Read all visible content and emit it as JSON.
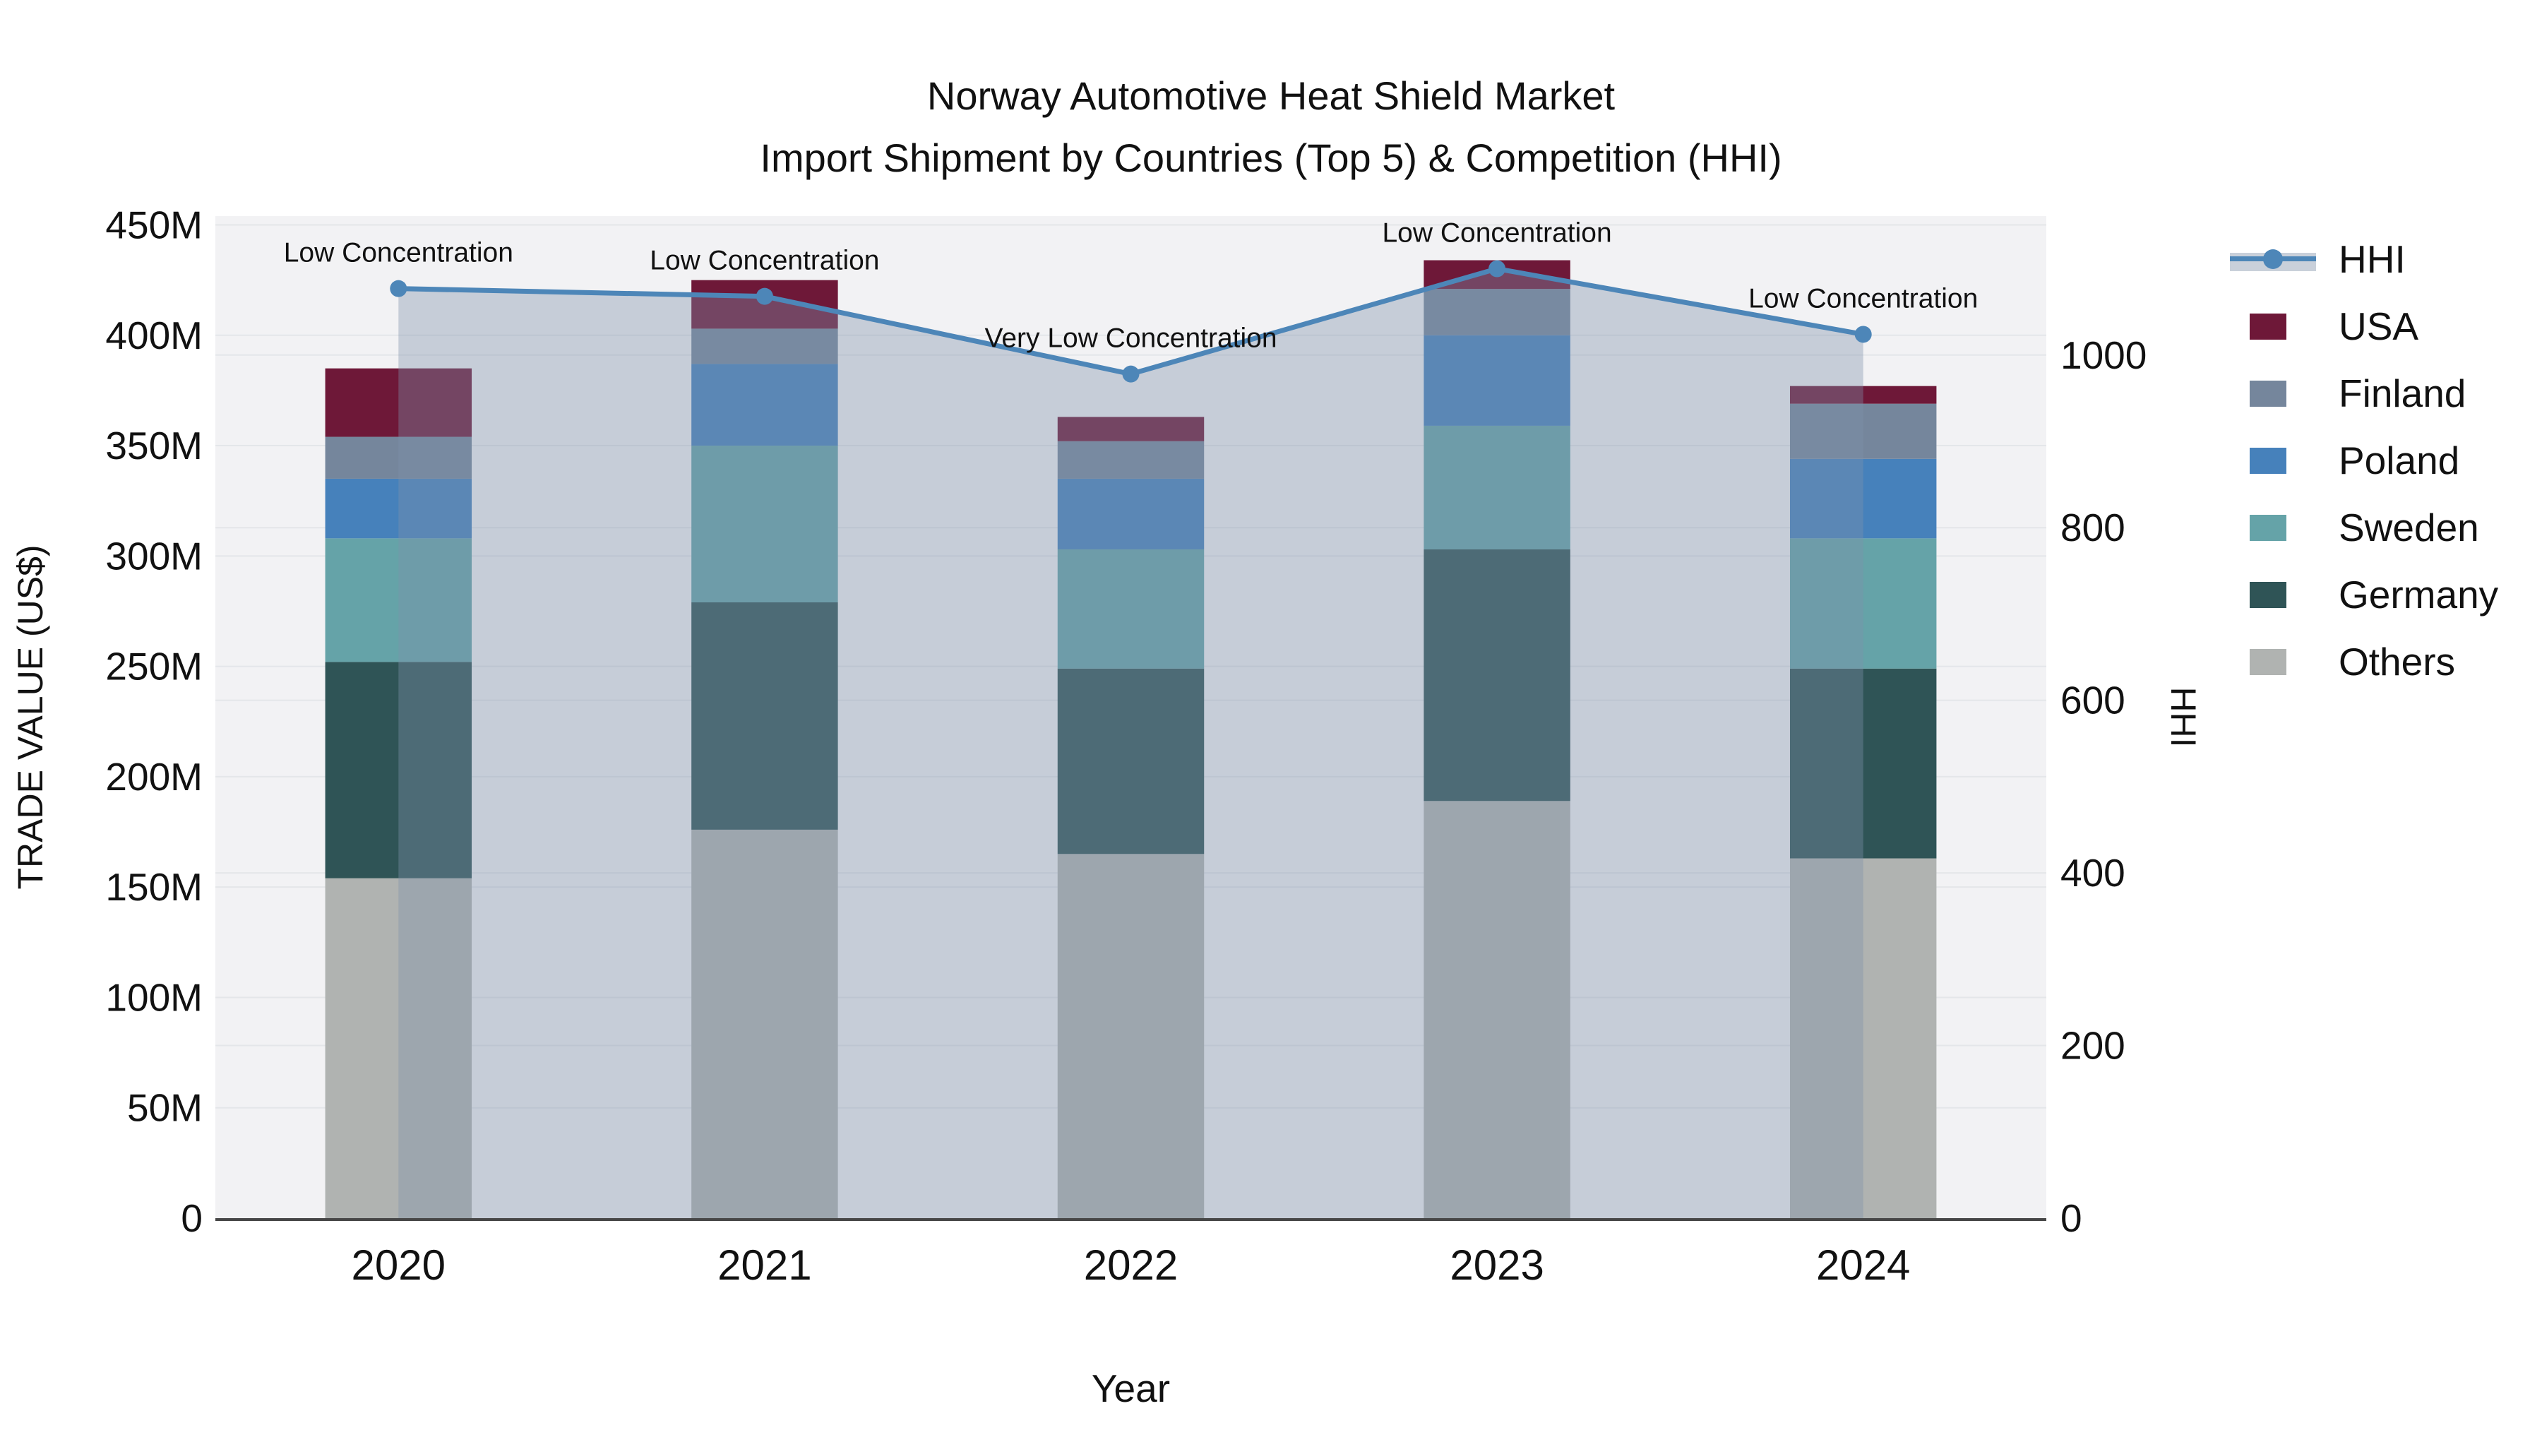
{
  "title": {
    "line1": "Norway Automotive Heat Shield Market",
    "line2": "Import Shipment by Countries (Top 5) & Competition (HHI)"
  },
  "legend": [
    {
      "label": "HHI",
      "type": "line"
    },
    {
      "label": "USA",
      "type": "swatch",
      "color": "#6e1838"
    },
    {
      "label": "Finland",
      "type": "swatch",
      "color": "#75869c"
    },
    {
      "label": "Poland",
      "type": "swatch",
      "color": "#4681bb"
    },
    {
      "label": "Sweden",
      "type": "swatch",
      "color": "#65a3a8"
    },
    {
      "label": "Germany",
      "type": "swatch",
      "color": "#2f5456"
    },
    {
      "label": "Others",
      "type": "swatch",
      "color": "#b0b3b1"
    }
  ],
  "chart_data": {
    "type": "bar+line combo (stacked bars on left axis, HHI line with area fill on right axis)",
    "categories": [
      "2020",
      "2021",
      "2022",
      "2023",
      "2024"
    ],
    "series": [
      {
        "name": "Others",
        "color": "#b0b3b1",
        "values": [
          154,
          176,
          165,
          189,
          163
        ]
      },
      {
        "name": "Germany",
        "color": "#2f5456",
        "values": [
          98,
          103,
          84,
          114,
          86
        ]
      },
      {
        "name": "Sweden",
        "color": "#65a3a8",
        "values": [
          56,
          71,
          54,
          56,
          59
        ]
      },
      {
        "name": "Poland",
        "color": "#4681bb",
        "values": [
          27,
          37,
          32,
          41,
          36
        ]
      },
      {
        "name": "Finland",
        "color": "#75869c",
        "values": [
          19,
          16,
          17,
          21,
          25
        ]
      },
      {
        "name": "USA",
        "color": "#6e1838",
        "values": [
          31,
          22,
          11,
          13,
          8
        ]
      }
    ],
    "hhi": {
      "name": "HHI",
      "values": [
        1077,
        1068,
        978,
        1100,
        1024
      ],
      "line_color": "#4d86b8",
      "area_color": "#7d91ab",
      "area_opacity": 0.38
    },
    "annotations": [
      "Low Concentration",
      "Low Concentration",
      "Very Low Concentration",
      "Low Concentration",
      "Low Concentration"
    ],
    "left_axis": {
      "title": "TRADE VALUE (US$)",
      "unit": "M",
      "tick_labels": [
        "0",
        "50M",
        "100M",
        "150M",
        "200M",
        "250M",
        "300M",
        "350M",
        "400M",
        "450M"
      ],
      "tick_values": [
        0,
        50,
        100,
        150,
        200,
        250,
        300,
        350,
        400,
        450
      ],
      "max": 454
    },
    "right_axis": {
      "title": "HHI",
      "tick_labels": [
        "0",
        "200",
        "400",
        "600",
        "800",
        "1000"
      ],
      "tick_values": [
        0,
        200,
        400,
        600,
        800,
        1000
      ],
      "max": 1161
    },
    "x_axis": {
      "title": "Year"
    },
    "layout_hints": {
      "plot_bg": "#f2f2f4",
      "grid_color": "#e4e6e9",
      "axis_line_color": "#474747",
      "grid_on": true,
      "legend_position": "right",
      "bar_width_fraction": 0.4,
      "area_spans_marker_to_marker": true
    }
  }
}
